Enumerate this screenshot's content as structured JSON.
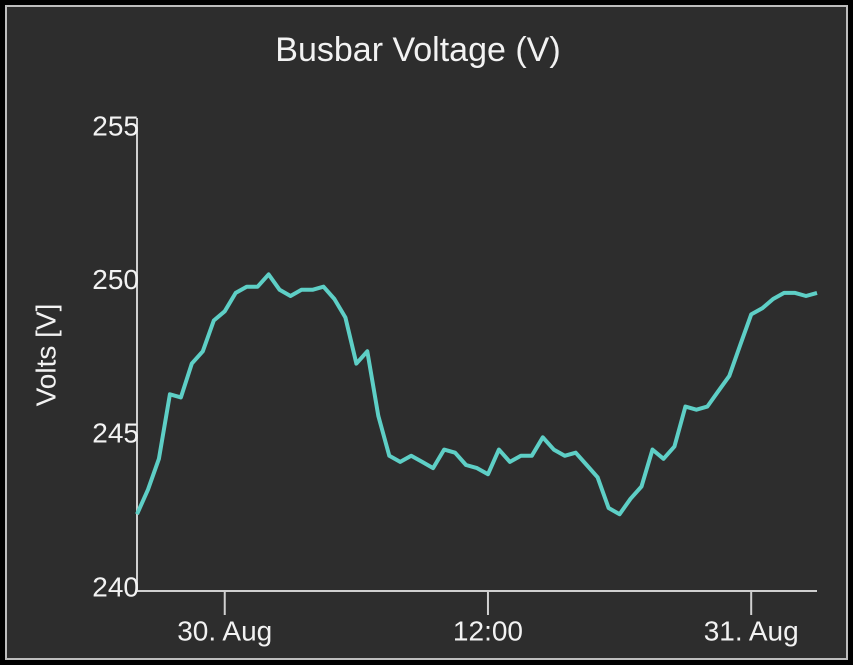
{
  "chart_data": {
    "type": "line",
    "title": "Busbar Voltage (V)",
    "y_label": "Volts [V]",
    "categories": [
      null,
      null,
      null,
      null,
      null,
      null,
      null,
      null,
      "30. Aug",
      null,
      null,
      null,
      null,
      null,
      null,
      null,
      null,
      null,
      null,
      null,
      null,
      null,
      null,
      null,
      null,
      null,
      null,
      null,
      null,
      null,
      null,
      null,
      "12:00",
      null,
      null,
      null,
      null,
      null,
      null,
      null,
      null,
      null,
      null,
      null,
      null,
      null,
      null,
      null,
      null,
      null,
      null,
      null,
      null,
      null,
      null,
      null,
      "31. Aug",
      null,
      null,
      null,
      null,
      null,
      null
    ],
    "series": [
      {
        "name": "Busbar Voltage",
        "color": "#5ecfc6",
        "values": [
          242.5,
          243.3,
          244.3,
          246.4,
          246.3,
          247.4,
          247.8,
          248.8,
          249.1,
          249.7,
          249.9,
          249.9,
          250.3,
          249.8,
          249.6,
          249.8,
          249.8,
          249.9,
          249.5,
          248.9,
          247.4,
          247.8,
          245.7,
          244.4,
          244.2,
          244.4,
          244.2,
          244.0,
          244.6,
          244.5,
          244.1,
          244.0,
          243.8,
          244.6,
          244.2,
          244.4,
          244.4,
          245.0,
          244.6,
          244.4,
          244.5,
          244.1,
          243.7,
          242.7,
          242.5,
          243.0,
          243.4,
          244.6,
          244.3,
          244.7,
          246.0,
          245.9,
          246.0,
          246.5,
          247.0,
          248.0,
          249.0,
          249.2,
          249.5,
          249.7,
          249.7,
          249.6,
          249.7
        ]
      }
    ],
    "ylim": [
      240,
      255
    ],
    "yticks": [
      240,
      245,
      250,
      255
    ],
    "grid": false,
    "legend": false
  }
}
